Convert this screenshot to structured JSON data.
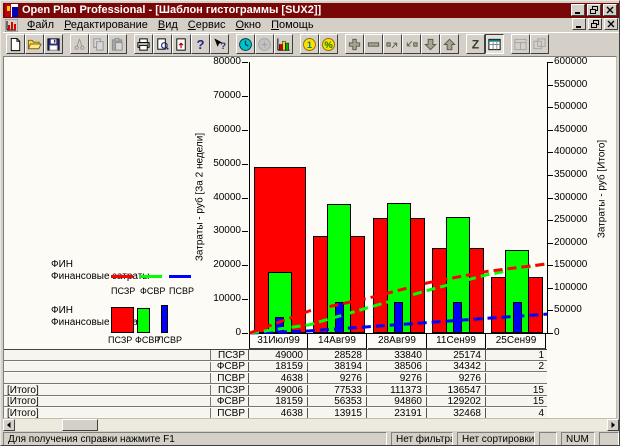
{
  "window": {
    "title": "Open Plan Professional - [Шаблон гистограммы [SUX2]]",
    "controls": [
      "minimize",
      "restore",
      "close"
    ]
  },
  "colors": {
    "titlebar": "#7a0707",
    "chrome": "#d4d0c8",
    "series_red": "#ff0000",
    "series_green": "#00ff00",
    "series_blue": "#0000ff"
  },
  "menu": {
    "items": [
      {
        "id": "file",
        "label": "Файл"
      },
      {
        "id": "edit",
        "label": "Редактирование"
      },
      {
        "id": "view",
        "label": "Вид"
      },
      {
        "id": "service",
        "label": "Сервис"
      },
      {
        "id": "window",
        "label": "Окно"
      },
      {
        "id": "help",
        "label": "Помощь"
      }
    ]
  },
  "toolbar": {
    "buttons": [
      {
        "name": "new-document",
        "enabled": true
      },
      {
        "name": "open-folder",
        "enabled": true
      },
      {
        "name": "save",
        "enabled": true
      },
      {
        "separator": true
      },
      {
        "name": "cut",
        "enabled": false
      },
      {
        "name": "copy",
        "enabled": false
      },
      {
        "name": "paste",
        "enabled": false
      },
      {
        "separator": true
      },
      {
        "name": "print",
        "enabled": true
      },
      {
        "name": "print-preview",
        "enabled": true
      },
      {
        "name": "page-up-arrows",
        "enabled": true
      },
      {
        "name": "help",
        "enabled": true
      },
      {
        "name": "context-help",
        "enabled": true
      },
      {
        "separator": true
      },
      {
        "name": "time-clock",
        "enabled": true
      },
      {
        "name": "cost-coin",
        "enabled": false
      },
      {
        "name": "histogram",
        "enabled": true
      },
      {
        "separator": true
      },
      {
        "name": "currency-coin",
        "enabled": true
      },
      {
        "name": "percent",
        "enabled": true
      },
      {
        "separator": true
      },
      {
        "name": "plus",
        "enabled": true
      },
      {
        "name": "minus",
        "enabled": true
      },
      {
        "name": "expand-arrow",
        "enabled": true
      },
      {
        "name": "collapse-arrow",
        "enabled": true
      },
      {
        "name": "arrow-down",
        "enabled": true
      },
      {
        "name": "arrow-up",
        "enabled": true
      },
      {
        "separator": true
      },
      {
        "name": "sort-z",
        "enabled": true
      },
      {
        "name": "grid-view",
        "enabled": true,
        "pressed": true
      },
      {
        "separator": true
      },
      {
        "name": "window-tile",
        "enabled": false
      },
      {
        "name": "window-cascade",
        "enabled": false
      }
    ]
  },
  "legend": {
    "line_group": {
      "title": "ФИН",
      "subtitle": "Финансовые затраты"
    },
    "bar_group": {
      "title": "ФИН",
      "subtitle": "Финансовые затраты"
    },
    "entries": [
      {
        "label": "ПСЗР",
        "color": "#ff0000"
      },
      {
        "label": "ФСВР",
        "color": "#00ff00"
      },
      {
        "label": "ПСВР",
        "color": "#0000ff"
      }
    ]
  },
  "chart_data": {
    "type": "bar",
    "categories": [
      "31Июл99",
      "14Авг99",
      "28Авг99",
      "11Сен99",
      "25Сен99"
    ],
    "left_axis": {
      "label": "Затраты - руб [За 2 недели]",
      "min": 0,
      "max": 80000,
      "step": 10000
    },
    "right_axis": {
      "label": "Затраты - руб [Итого]",
      "min": 0,
      "max": 600000,
      "step": 50000
    },
    "bar_series": [
      {
        "name": "ПСЗР",
        "color": "#ff0000",
        "values": [
          49000,
          28528,
          33840,
          25174,
          16500
        ]
      },
      {
        "name": "ФСВР",
        "color": "#00ff00",
        "values": [
          18159,
          38194,
          38506,
          34342,
          24500
        ]
      },
      {
        "name": "ПСВР",
        "color": "#0000ff",
        "values": [
          4638,
          9276,
          9276,
          9276,
          9276
        ]
      }
    ],
    "line_series": [
      {
        "name": "ПСЗР",
        "color": "#ff0000",
        "values": [
          49006,
          77533,
          111373,
          136547,
          153000
        ]
      },
      {
        "name": "ФСВР",
        "color": "#00ff00",
        "values": [
          18159,
          56353,
          94860,
          129202,
          153700
        ]
      },
      {
        "name": "ПСВР",
        "color": "#0000ff",
        "values": [
          4638,
          13915,
          23191,
          32468,
          41744
        ]
      }
    ],
    "legend_position": "left",
    "grid": false
  },
  "table": {
    "rows": [
      {
        "group": "",
        "label": "ПСЗР",
        "values": [
          "49000",
          "28528",
          "33840",
          "25174"
        ],
        "clipped": "1"
      },
      {
        "group": "",
        "label": "ФСВР",
        "values": [
          "18159",
          "38194",
          "38506",
          "34342"
        ],
        "clipped": "2"
      },
      {
        "group": "",
        "label": "ПСВР",
        "values": [
          "4638",
          "9276",
          "9276",
          "9276"
        ],
        "clipped": ""
      },
      {
        "group": "[Итого]",
        "label": "ПСЗР",
        "values": [
          "49006",
          "77533",
          "111373",
          "136547"
        ],
        "clipped": "15"
      },
      {
        "group": "[Итого]",
        "label": "ФСВР",
        "values": [
          "18159",
          "56353",
          "94860",
          "129202"
        ],
        "clipped": "15"
      },
      {
        "group": "[Итого]",
        "label": "ПСВР",
        "values": [
          "4638",
          "13915",
          "23191",
          "32468"
        ],
        "clipped": "4"
      }
    ]
  },
  "statusbar": {
    "message": "Для получения справки нажмите F1",
    "filter": "Нет фильтра",
    "sort": "Нет сортировки",
    "num": "NUM"
  }
}
